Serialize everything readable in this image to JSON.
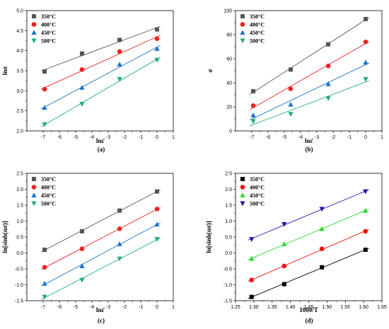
{
  "chart_data": [
    {
      "type": "scatter",
      "caption": "(a)",
      "xlabel": "lnε̇",
      "ylabel": "lnσ",
      "xlim": [
        -8,
        1
      ],
      "ylim": [
        2.0,
        5.0
      ],
      "xticks": [
        -7,
        -6,
        -5,
        -4,
        -3,
        -2,
        -1,
        0,
        1
      ],
      "xtick_labels": [
        "-7",
        "-6",
        "-5",
        "-4",
        "-3",
        "-2",
        "-1",
        "0",
        "1"
      ],
      "yticks": [
        2.0,
        2.5,
        3.0,
        3.5,
        4.0,
        4.5,
        5.0
      ],
      "ytick_labels": [
        "2.0",
        "2.5",
        "3.0",
        "3.5",
        "4.0",
        "4.5",
        "5.0"
      ],
      "legend": "top-left",
      "series": [
        {
          "name": "350°C",
          "color": "#555555",
          "marker": "square",
          "x": [
            -6.91,
            -4.61,
            -2.3,
            0
          ],
          "y": [
            3.48,
            3.93,
            4.27,
            4.53
          ]
        },
        {
          "name": "400°C",
          "color": "#ee2222",
          "marker": "circle",
          "x": [
            -6.91,
            -4.61,
            -2.3,
            0
          ],
          "y": [
            3.04,
            3.53,
            3.98,
            4.3
          ]
        },
        {
          "name": "450°C",
          "color": "#1a73c8",
          "marker": "triangle-up",
          "x": [
            -6.91,
            -4.61,
            -2.3,
            0
          ],
          "y": [
            2.58,
            3.08,
            3.66,
            4.05
          ]
        },
        {
          "name": "500°C",
          "color": "#1fae7a",
          "marker": "triangle-down",
          "x": [
            -6.91,
            -4.61,
            -2.3,
            0
          ],
          "y": [
            2.16,
            2.67,
            3.29,
            3.77
          ]
        }
      ]
    },
    {
      "type": "scatter",
      "caption": "(b)",
      "xlabel": "lnε̇",
      "ylabel": "σ",
      "xlim": [
        -8,
        1
      ],
      "ylim": [
        0,
        100
      ],
      "xticks": [
        -7,
        -6,
        -5,
        -4,
        -3,
        -2,
        -1,
        0,
        1
      ],
      "xtick_labels": [
        "-7",
        "-6",
        "-5",
        "-4",
        "-3",
        "-2",
        "-1",
        "0",
        "1"
      ],
      "yticks": [
        0,
        20,
        40,
        60,
        80,
        100
      ],
      "ytick_labels": [
        "0",
        "20",
        "40",
        "60",
        "80",
        "100"
      ],
      "legend": "top-left",
      "series": [
        {
          "name": "350°C",
          "color": "#555555",
          "marker": "square",
          "x": [
            -6.91,
            -4.61,
            -2.3,
            0
          ],
          "y": [
            33,
            51,
            72,
            93
          ]
        },
        {
          "name": "400°C",
          "color": "#ee2222",
          "marker": "circle",
          "x": [
            -6.91,
            -4.61,
            -2.3,
            0
          ],
          "y": [
            21,
            35,
            54,
            74
          ]
        },
        {
          "name": "450°C",
          "color": "#1a73c8",
          "marker": "triangle-up",
          "x": [
            -6.91,
            -4.61,
            -2.3,
            0
          ],
          "y": [
            13,
            22,
            39,
            57
          ]
        },
        {
          "name": "500°C",
          "color": "#1fae7a",
          "marker": "triangle-down",
          "x": [
            -6.91,
            -4.61,
            -2.3,
            0
          ],
          "y": [
            8,
            14,
            27,
            43
          ]
        }
      ]
    },
    {
      "type": "scatter",
      "caption": "(c)",
      "xlabel": "lnε̇",
      "ylabel": "ln[sinh(ασ)]",
      "xlim": [
        -8,
        1
      ],
      "ylim": [
        -1.5,
        2.5
      ],
      "xticks": [
        -7,
        -6,
        -5,
        -4,
        -3,
        -2,
        -1,
        0,
        1
      ],
      "xtick_labels": [
        "-7",
        "-6",
        "-5",
        "-4",
        "-3",
        "-2",
        "-1",
        "0",
        "1"
      ],
      "yticks": [
        -1.5,
        -1.0,
        -0.5,
        0.0,
        0.5,
        1.0,
        1.5,
        2.0,
        2.5
      ],
      "ytick_labels": [
        "-1.5",
        "-1.0",
        "-0.5",
        "0.0",
        "0.5",
        "1.0",
        "1.5",
        "2.0",
        "2.5"
      ],
      "legend": "top-left",
      "series": [
        {
          "name": "350°C",
          "color": "#555555",
          "marker": "square",
          "x": [
            -6.91,
            -4.61,
            -2.3,
            0
          ],
          "y": [
            0.1,
            0.68,
            1.33,
            1.93
          ]
        },
        {
          "name": "400°C",
          "color": "#ee2222",
          "marker": "circle",
          "x": [
            -6.91,
            -4.61,
            -2.3,
            0
          ],
          "y": [
            -0.45,
            0.13,
            0.76,
            1.38
          ]
        },
        {
          "name": "450°C",
          "color": "#1a73c8",
          "marker": "triangle-up",
          "x": [
            -6.91,
            -4.61,
            -2.3,
            0
          ],
          "y": [
            -0.96,
            -0.41,
            0.28,
            0.9
          ]
        },
        {
          "name": "500°C",
          "color": "#1fae7a",
          "marker": "triangle-down",
          "x": [
            -6.91,
            -4.61,
            -2.3,
            0
          ],
          "y": [
            -1.38,
            -0.85,
            -0.18,
            0.43
          ]
        }
      ]
    },
    {
      "type": "scatter",
      "caption": "(d)",
      "xlabel": "1000/T",
      "ylabel": "ln[sinh(ασ)]",
      "xlim": [
        1.25,
        1.65
      ],
      "ylim": [
        -1.5,
        2.5
      ],
      "xticks": [
        1.25,
        1.3,
        1.35,
        1.4,
        1.45,
        1.5,
        1.55,
        1.6,
        1.65
      ],
      "xtick_labels": [
        "1.25",
        "1.30",
        "1.35",
        "1.40",
        "1.45",
        "1.50",
        "1.55",
        "1.60",
        "1.65"
      ],
      "yticks": [
        -1.5,
        -1.0,
        -0.5,
        0.0,
        0.5,
        1.0,
        1.5,
        2.0,
        2.5
      ],
      "ytick_labels": [
        "-1.5",
        "-1.0",
        "-0.5",
        "0.0",
        "0.5",
        "1.0",
        "1.5",
        "2.0",
        "2.5"
      ],
      "legend": "top-left",
      "series": [
        {
          "name": "350°C",
          "color": "#000000",
          "marker": "square",
          "x": [
            1.294,
            1.383,
            1.486,
            1.605
          ],
          "y": [
            -1.38,
            -0.98,
            -0.45,
            0.1
          ]
        },
        {
          "name": "400°C",
          "color": "#ee1111",
          "marker": "circle",
          "x": [
            1.294,
            1.383,
            1.486,
            1.605
          ],
          "y": [
            -0.85,
            -0.41,
            0.13,
            0.68
          ]
        },
        {
          "name": "450°C",
          "color": "#22dd22",
          "marker": "triangle-up",
          "x": [
            1.294,
            1.383,
            1.486,
            1.605
          ],
          "y": [
            -0.18,
            0.28,
            0.76,
            1.33
          ]
        },
        {
          "name": "500°C",
          "color": "#1a1aaa",
          "marker": "triangle-down",
          "x": [
            1.294,
            1.383,
            1.486,
            1.605
          ],
          "y": [
            0.43,
            0.9,
            1.38,
            1.93
          ]
        }
      ]
    }
  ]
}
